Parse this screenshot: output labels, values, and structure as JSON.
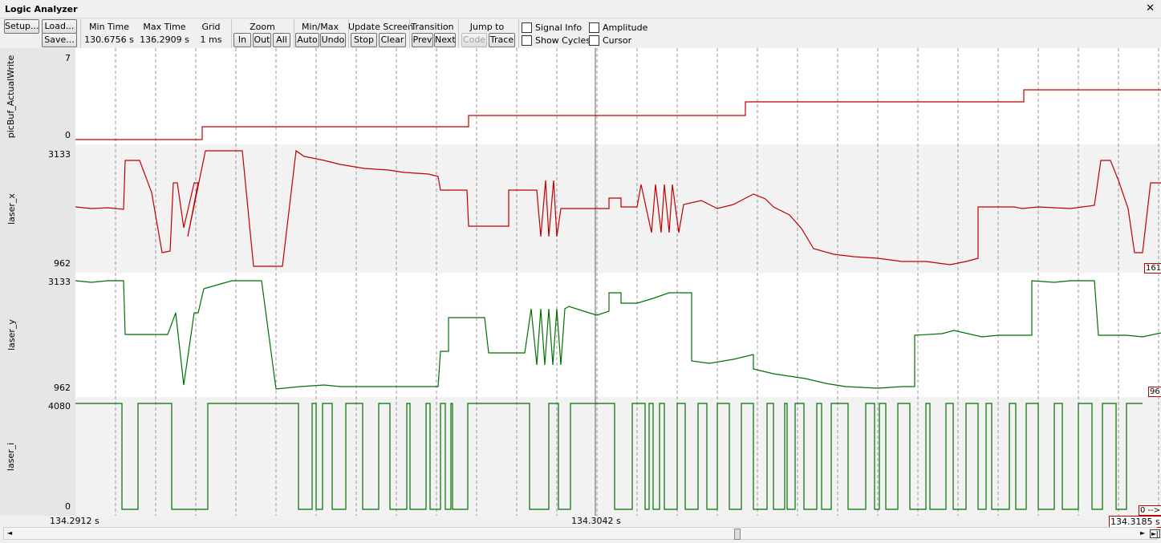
{
  "window": {
    "title": "Logic Analyzer",
    "close_glyph": "✕"
  },
  "toolbar": {
    "setup": "Setup...",
    "load": "Load...",
    "save": "Save...",
    "min_time_label": "Min Time",
    "min_time": "130.6756 s",
    "max_time_label": "Max Time",
    "max_time": "136.2909 s",
    "grid_label": "Grid",
    "grid": "1 ms",
    "zoom_label": "Zoom",
    "zoom_in": "In",
    "zoom_out": "Out",
    "zoom_all": "All",
    "minmax_label": "Min/Max",
    "auto": "Auto",
    "undo": "Undo",
    "update_label": "Update Screen",
    "stop": "Stop",
    "clear": "Clear",
    "transition_label": "Transition",
    "prev": "Prev",
    "next": "Next",
    "jump_label": "Jump to",
    "code": "Code",
    "trace": "Trace",
    "signal_info": "Signal Info",
    "show_cycles": "Show Cycles",
    "amplitude": "Amplitude",
    "cursor": "Cursor"
  },
  "signals": [
    {
      "name": "picBuf_ActualWrite",
      "max": "7",
      "min": "0",
      "color": "#c00000",
      "edge_tag": ""
    },
    {
      "name": "laser_x",
      "max": "3133",
      "min": "962",
      "color": "#c00000",
      "edge_tag": "161"
    },
    {
      "name": "laser_y",
      "max": "3133",
      "min": "962",
      "color": "#007000",
      "edge_tag": "96"
    },
    {
      "name": "laser_i",
      "max": "4080",
      "min": "0",
      "color": "#007000",
      "edge_tag": "0 -->"
    }
  ],
  "time_axis": {
    "left": "134.2912 s",
    "center": "134.3042 s",
    "right": "134.3185 s"
  },
  "scroll_arrows": {
    "left": "◄",
    "right": "►",
    "end": "►|"
  },
  "icons": [
    "close-icon",
    "checkbox-icon",
    "scroll-left-icon",
    "scroll-right-icon"
  ]
}
